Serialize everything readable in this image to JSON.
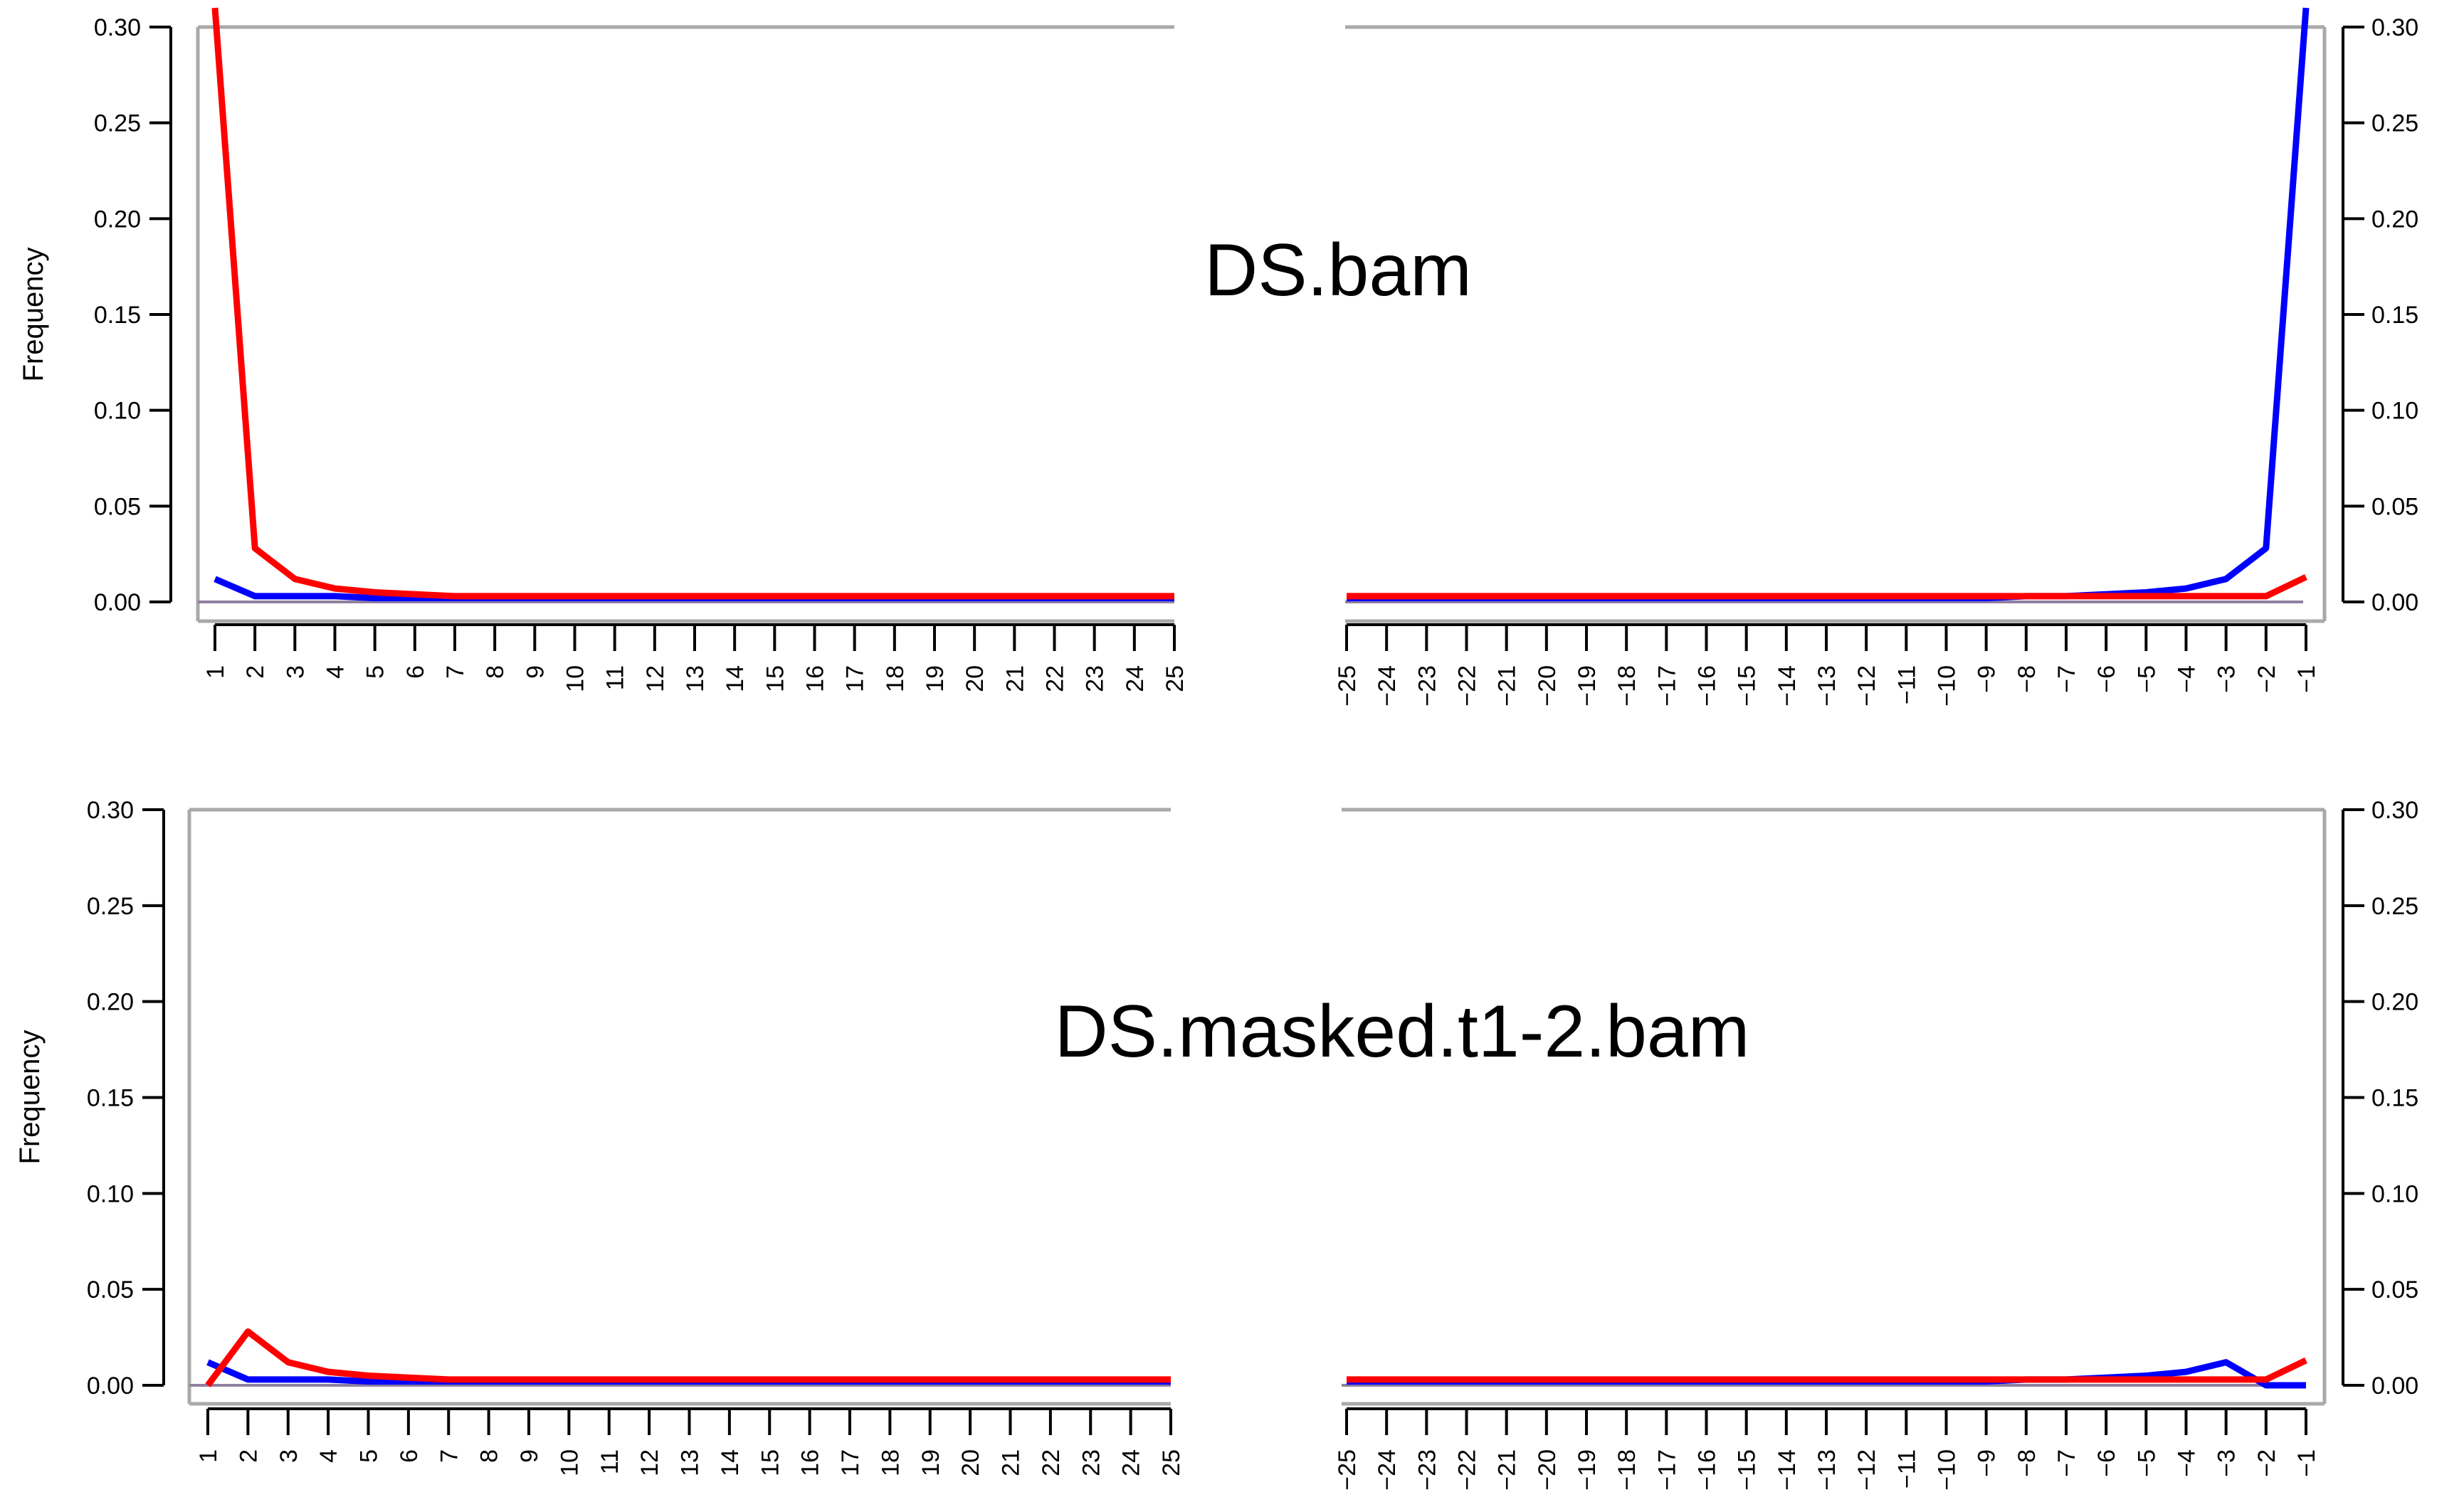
{
  "chart_data": [
    {
      "type": "line",
      "title": "DS.bam",
      "ylabel": "Frequency",
      "ylim": [
        0,
        0.3
      ],
      "yticks": [
        "0.00",
        "0.05",
        "0.10",
        "0.15",
        "0.20",
        "0.25",
        "0.30"
      ],
      "x_left": [
        1,
        2,
        3,
        4,
        5,
        6,
        7,
        8,
        9,
        10,
        11,
        12,
        13,
        14,
        15,
        16,
        17,
        18,
        19,
        20,
        21,
        22,
        23,
        24,
        25
      ],
      "x_right": [
        -25,
        -24,
        -23,
        -22,
        -21,
        -20,
        -19,
        -18,
        -17,
        -16,
        -15,
        -14,
        -13,
        -12,
        -11,
        -10,
        -9,
        -8,
        -7,
        -6,
        -5,
        -4,
        -3,
        -2,
        -1
      ],
      "series": [
        {
          "color": "#ff0000",
          "left": [
            0.31,
            0.028,
            0.012,
            0.007,
            0.005,
            0.004,
            0.003,
            0.003,
            0.003,
            0.003,
            0.003,
            0.003,
            0.003,
            0.003,
            0.003,
            0.003,
            0.003,
            0.003,
            0.003,
            0.003,
            0.003,
            0.003,
            0.003,
            0.003,
            0.003
          ],
          "right": [
            0.003,
            0.003,
            0.003,
            0.003,
            0.003,
            0.003,
            0.003,
            0.003,
            0.003,
            0.003,
            0.003,
            0.003,
            0.003,
            0.003,
            0.003,
            0.003,
            0.003,
            0.003,
            0.003,
            0.003,
            0.003,
            0.003,
            0.003,
            0.003,
            0.013
          ]
        },
        {
          "color": "#0000ff",
          "left": [
            0.012,
            0.003,
            0.003,
            0.003,
            0.002,
            0.002,
            0.002,
            0.002,
            0.002,
            0.002,
            0.002,
            0.002,
            0.002,
            0.002,
            0.002,
            0.002,
            0.002,
            0.002,
            0.002,
            0.002,
            0.002,
            0.002,
            0.002,
            0.002,
            0.002
          ],
          "right": [
            0.002,
            0.002,
            0.002,
            0.002,
            0.002,
            0.002,
            0.002,
            0.002,
            0.002,
            0.002,
            0.002,
            0.002,
            0.002,
            0.002,
            0.002,
            0.002,
            0.002,
            0.003,
            0.003,
            0.004,
            0.005,
            0.007,
            0.012,
            0.028,
            0.31
          ]
        }
      ]
    },
    {
      "type": "line",
      "title": "DS.masked.t1-2.bam",
      "ylabel": "Frequency",
      "ylim": [
        0,
        0.3
      ],
      "yticks": [
        "0.00",
        "0.05",
        "0.10",
        "0.15",
        "0.20",
        "0.25",
        "0.30"
      ],
      "x_left": [
        1,
        2,
        3,
        4,
        5,
        6,
        7,
        8,
        9,
        10,
        11,
        12,
        13,
        14,
        15,
        16,
        17,
        18,
        19,
        20,
        21,
        22,
        23,
        24,
        25
      ],
      "x_right": [
        -25,
        -24,
        -23,
        -22,
        -21,
        -20,
        -19,
        -18,
        -17,
        -16,
        -15,
        -14,
        -13,
        -12,
        -11,
        -10,
        -9,
        -8,
        -7,
        -6,
        -5,
        -4,
        -3,
        -2,
        -1
      ],
      "series": [
        {
          "color": "#ff0000",
          "left": [
            0.0,
            0.028,
            0.012,
            0.007,
            0.005,
            0.004,
            0.003,
            0.003,
            0.003,
            0.003,
            0.003,
            0.003,
            0.003,
            0.003,
            0.003,
            0.003,
            0.003,
            0.003,
            0.003,
            0.003,
            0.003,
            0.003,
            0.003,
            0.003,
            0.003
          ],
          "right": [
            0.003,
            0.003,
            0.003,
            0.003,
            0.003,
            0.003,
            0.003,
            0.003,
            0.003,
            0.003,
            0.003,
            0.003,
            0.003,
            0.003,
            0.003,
            0.003,
            0.003,
            0.003,
            0.003,
            0.003,
            0.003,
            0.003,
            0.003,
            0.003,
            0.013
          ]
        },
        {
          "color": "#0000ff",
          "left": [
            0.012,
            0.003,
            0.003,
            0.003,
            0.002,
            0.002,
            0.002,
            0.002,
            0.002,
            0.002,
            0.002,
            0.002,
            0.002,
            0.002,
            0.002,
            0.002,
            0.002,
            0.002,
            0.002,
            0.002,
            0.002,
            0.002,
            0.002,
            0.002,
            0.002
          ],
          "right": [
            0.002,
            0.002,
            0.002,
            0.002,
            0.002,
            0.002,
            0.002,
            0.002,
            0.002,
            0.002,
            0.002,
            0.002,
            0.002,
            0.002,
            0.002,
            0.002,
            0.002,
            0.003,
            0.003,
            0.004,
            0.005,
            0.007,
            0.012,
            0.0,
            0.0
          ]
        }
      ]
    }
  ]
}
